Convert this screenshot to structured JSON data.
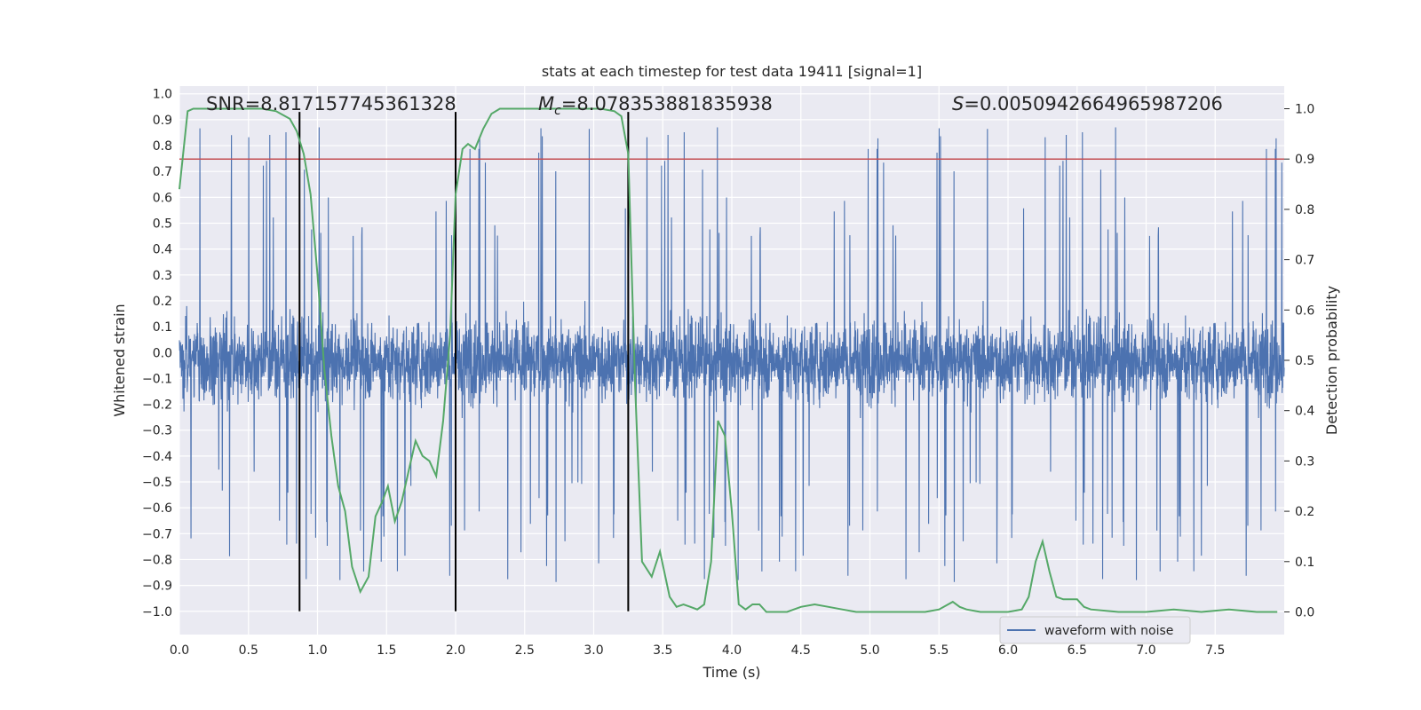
{
  "chart_data": {
    "type": "line",
    "title": "stats at each timestep for test data 19411 [signal=1]",
    "xlabel": "Time (s)",
    "ylabel_left": "Whitened strain",
    "ylabel_right": "Detection probability",
    "xlim": [
      0.0,
      8.0
    ],
    "ylim_left": [
      -1.09,
      1.03
    ],
    "ylim_right": [
      -0.045,
      1.045
    ],
    "x_ticks": [
      0.0,
      0.5,
      1.0,
      1.5,
      2.0,
      2.5,
      3.0,
      3.5,
      4.0,
      4.5,
      5.0,
      5.5,
      6.0,
      6.5,
      7.0,
      7.5
    ],
    "x_tick_labels": [
      "0.0",
      "0.5",
      "1.0",
      "1.5",
      "2.0",
      "2.5",
      "3.0",
      "3.5",
      "4.0",
      "4.5",
      "5.0",
      "5.5",
      "6.0",
      "6.5",
      "7.0",
      "7.5"
    ],
    "y_left_ticks": [
      1.0,
      0.9,
      0.8,
      0.7,
      0.6,
      0.5,
      0.4,
      0.3,
      0.2,
      0.1,
      0.0,
      -0.1,
      -0.2,
      -0.3,
      -0.4,
      -0.5,
      -0.6,
      -0.7,
      -0.8,
      -0.9,
      -1.0
    ],
    "y_left_tick_labels": [
      "1.0",
      "0.9",
      "0.8",
      "0.7",
      "0.6",
      "0.5",
      "0.4",
      "0.3",
      "0.2",
      "0.1",
      "0.0",
      "−0.1",
      "−0.2",
      "−0.3",
      "−0.4",
      "−0.5",
      "−0.6",
      "−0.7",
      "−0.8",
      "−0.9",
      "−1.0"
    ],
    "y_right_ticks": [
      1.0,
      0.9,
      0.8,
      0.7,
      0.6,
      0.5,
      0.4,
      0.3,
      0.2,
      0.1,
      0.0
    ],
    "y_right_tick_labels": [
      "1.0",
      "0.9",
      "0.8",
      "0.7",
      "0.6",
      "0.5",
      "0.4",
      "0.3",
      "0.2",
      "0.1",
      "0.0"
    ],
    "annotations": {
      "snr": "SNR=8.817157745361328",
      "mc_symbol": "M",
      "mc_subscript": "c",
      "mc_value": "=8.078353881835938",
      "s_symbol": "S",
      "s_value": "=0.0050942664965987206"
    },
    "vertical_lines_x": [
      0.87,
      2.0,
      3.25
    ],
    "threshold_right": 0.9,
    "strain_series": {
      "name": "waveform with noise",
      "color": "#4c72b0",
      "sample_count": 4096,
      "x_range": [
        0.0,
        8.0
      ],
      "typical_range": [
        -0.42,
        0.35
      ],
      "peak_range": [
        -0.99,
        0.93
      ]
    },
    "probability_series": {
      "name": "detection probability",
      "color": "#55a868",
      "points": [
        [
          0.0,
          0.84
        ],
        [
          0.06,
          0.995
        ],
        [
          0.1,
          1.0
        ],
        [
          0.2,
          1.0
        ],
        [
          0.3,
          1.0
        ],
        [
          0.4,
          1.0
        ],
        [
          0.5,
          1.0
        ],
        [
          0.6,
          1.0
        ],
        [
          0.7,
          0.995
        ],
        [
          0.8,
          0.98
        ],
        [
          0.85,
          0.955
        ],
        [
          0.9,
          0.91
        ],
        [
          0.95,
          0.83
        ],
        [
          1.0,
          0.67
        ],
        [
          1.05,
          0.48
        ],
        [
          1.1,
          0.35
        ],
        [
          1.15,
          0.25
        ],
        [
          1.2,
          0.2
        ],
        [
          1.25,
          0.09
        ],
        [
          1.31,
          0.04
        ],
        [
          1.37,
          0.07
        ],
        [
          1.42,
          0.19
        ],
        [
          1.47,
          0.22
        ],
        [
          1.51,
          0.25
        ],
        [
          1.56,
          0.18
        ],
        [
          1.61,
          0.22
        ],
        [
          1.66,
          0.28
        ],
        [
          1.71,
          0.34
        ],
        [
          1.76,
          0.31
        ],
        [
          1.81,
          0.3
        ],
        [
          1.86,
          0.27
        ],
        [
          1.91,
          0.38
        ],
        [
          1.96,
          0.55
        ],
        [
          2.0,
          0.83
        ],
        [
          2.05,
          0.92
        ],
        [
          2.09,
          0.93
        ],
        [
          2.14,
          0.92
        ],
        [
          2.2,
          0.96
        ],
        [
          2.26,
          0.99
        ],
        [
          2.32,
          1.0
        ],
        [
          2.45,
          1.0
        ],
        [
          2.6,
          1.0
        ],
        [
          2.75,
          1.0
        ],
        [
          2.9,
          1.0
        ],
        [
          3.05,
          1.0
        ],
        [
          3.15,
          0.995
        ],
        [
          3.2,
          0.985
        ],
        [
          3.25,
          0.91
        ],
        [
          3.3,
          0.45
        ],
        [
          3.35,
          0.1
        ],
        [
          3.42,
          0.07
        ],
        [
          3.48,
          0.12
        ],
        [
          3.55,
          0.03
        ],
        [
          3.6,
          0.01
        ],
        [
          3.65,
          0.015
        ],
        [
          3.7,
          0.01
        ],
        [
          3.75,
          0.005
        ],
        [
          3.8,
          0.015
        ],
        [
          3.85,
          0.1
        ],
        [
          3.9,
          0.38
        ],
        [
          3.95,
          0.35
        ],
        [
          4.0,
          0.2
        ],
        [
          4.05,
          0.015
        ],
        [
          4.1,
          0.005
        ],
        [
          4.15,
          0.015
        ],
        [
          4.2,
          0.015
        ],
        [
          4.25,
          0.0
        ],
        [
          4.3,
          0.0
        ],
        [
          4.4,
          0.0
        ],
        [
          4.5,
          0.01
        ],
        [
          4.6,
          0.015
        ],
        [
          4.7,
          0.01
        ],
        [
          4.8,
          0.005
        ],
        [
          4.9,
          0.0
        ],
        [
          5.0,
          0.0
        ],
        [
          5.2,
          0.0
        ],
        [
          5.4,
          0.0
        ],
        [
          5.5,
          0.005
        ],
        [
          5.6,
          0.02
        ],
        [
          5.65,
          0.01
        ],
        [
          5.7,
          0.005
        ],
        [
          5.8,
          0.0
        ],
        [
          6.0,
          0.0
        ],
        [
          6.1,
          0.005
        ],
        [
          6.15,
          0.03
        ],
        [
          6.2,
          0.1
        ],
        [
          6.25,
          0.14
        ],
        [
          6.3,
          0.08
        ],
        [
          6.35,
          0.03
        ],
        [
          6.4,
          0.025
        ],
        [
          6.5,
          0.025
        ],
        [
          6.55,
          0.01
        ],
        [
          6.6,
          0.005
        ],
        [
          6.8,
          0.0
        ],
        [
          7.0,
          0.0
        ],
        [
          7.2,
          0.005
        ],
        [
          7.4,
          0.0
        ],
        [
          7.6,
          0.005
        ],
        [
          7.8,
          0.0
        ],
        [
          7.95,
          0.0
        ]
      ]
    },
    "threshold_color": "#c44e52",
    "vline_color": "#000000",
    "legend": {
      "label": "waveform with noise",
      "placement": "lower-right"
    }
  }
}
